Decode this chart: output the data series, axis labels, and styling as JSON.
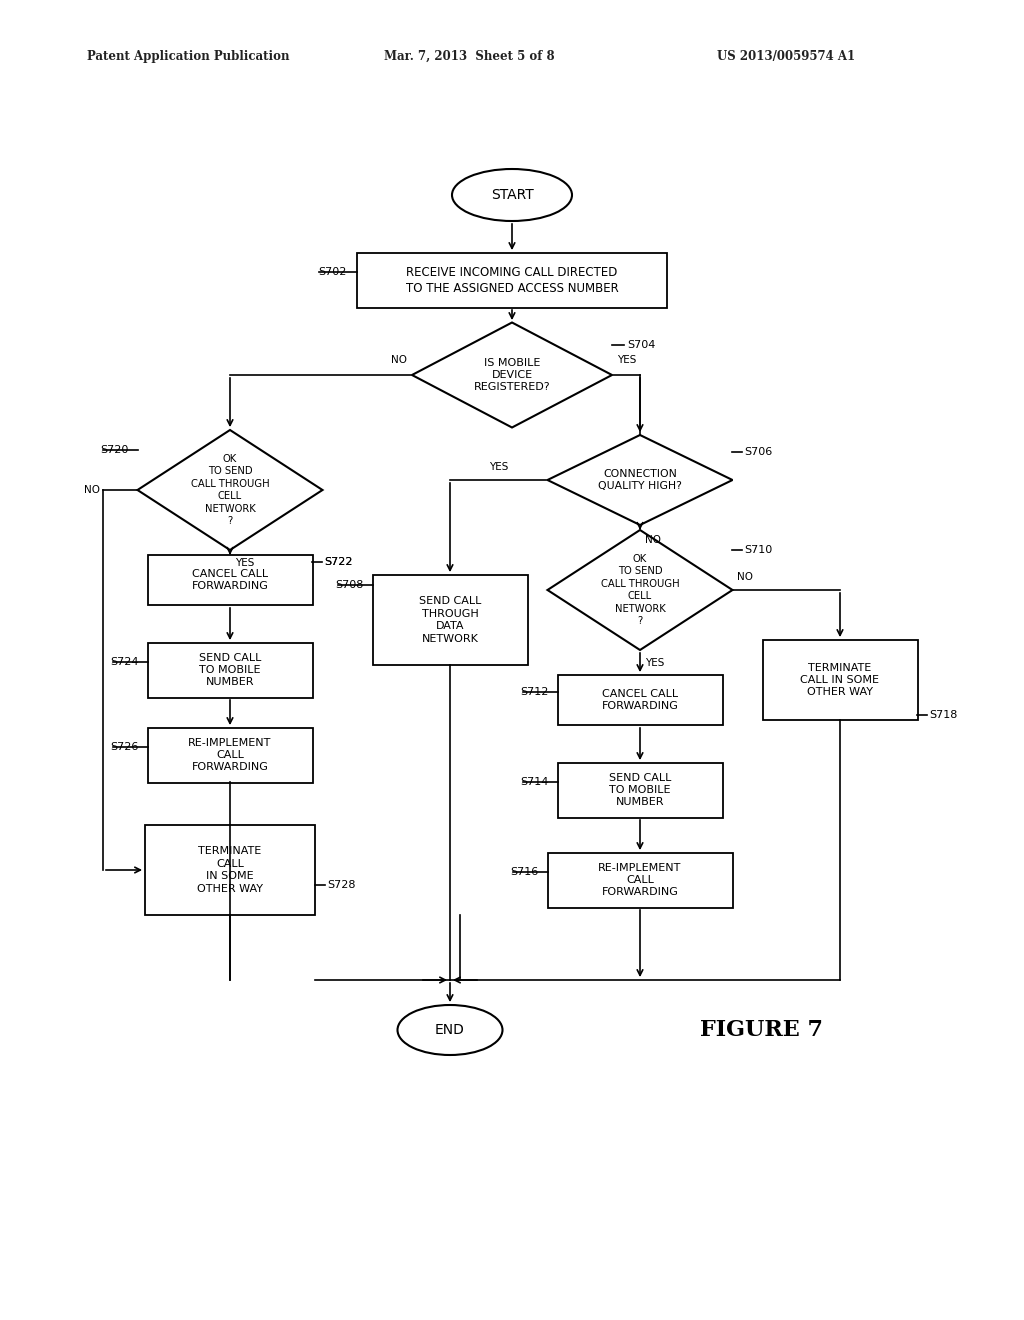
{
  "bg_color": "#ffffff",
  "header_left": "Patent Application Publication",
  "header_mid": "Mar. 7, 2013  Sheet 5 of 8",
  "header_right": "US 2013/0059574 A1",
  "figure_label": "FIGURE 7"
}
